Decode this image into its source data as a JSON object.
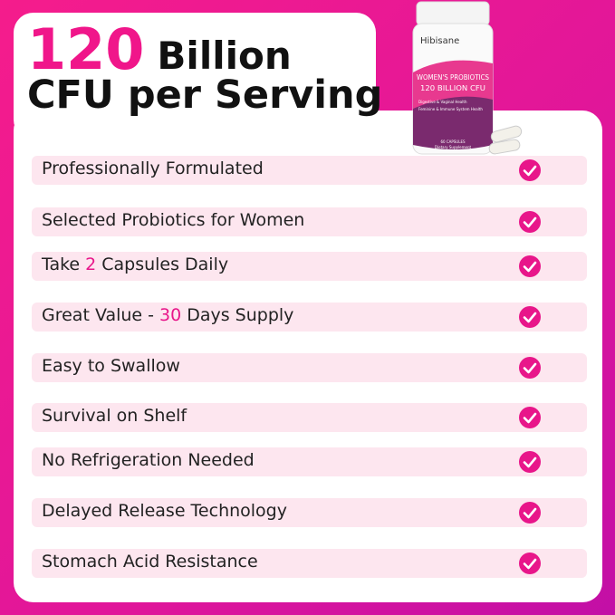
{
  "headline": {
    "number": "120",
    "unit": "Billion",
    "line2": "CFU per Serving"
  },
  "bottle": {
    "brand": "Hibisane",
    "product": "WOMEN'S PROBIOTICS",
    "strength": "120 BILLION CFU",
    "benefit1": "Digestive & Vaginal Health",
    "benefit2": "Feminine & Immune System Health",
    "count": "60 CAPSULES",
    "kind": "Dietary Supplement"
  },
  "features": [
    {
      "text": "Professionally Formulated"
    },
    {
      "text": "Selected Probiotics for Women"
    },
    {
      "text": "Take",
      "number": "2",
      "rest": "Capsules Daily"
    },
    {
      "text": "Great Value -",
      "number": "30",
      "rest": "Days Supply"
    },
    {
      "text": "Easy to Swallow"
    },
    {
      "text": "Survival on Shelf"
    },
    {
      "text": "No Refrigeration Needed"
    },
    {
      "text": "Delayed Release Technology"
    },
    {
      "text": "Stomach Acid Resistance"
    }
  ]
}
